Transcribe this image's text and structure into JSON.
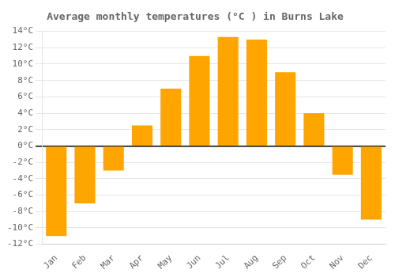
{
  "chart_data": {
    "type": "bar",
    "title": "Average monthly temperatures (°C ) in Burns Lake",
    "categories": [
      "Jan",
      "Feb",
      "Mar",
      "Apr",
      "May",
      "Jun",
      "Jul",
      "Aug",
      "Sep",
      "Oct",
      "Nov",
      "Dec"
    ],
    "values": [
      -11,
      -7,
      -3,
      2.5,
      7,
      11,
      13.3,
      13,
      9,
      4,
      -3.5,
      -9
    ],
    "color": "#FFA500",
    "ylim": [
      -12,
      14
    ],
    "yticks": [
      {
        "value": -12,
        "label": "-12°C"
      },
      {
        "value": -10,
        "label": "-10°C"
      },
      {
        "value": -8,
        "label": "-8°C"
      },
      {
        "value": -6,
        "label": "-6°C"
      },
      {
        "value": -4,
        "label": "-4°C"
      },
      {
        "value": -2,
        "label": "-2°C"
      },
      {
        "value": 0,
        "label": "0°C"
      },
      {
        "value": 2,
        "label": "2°C"
      },
      {
        "value": 4,
        "label": "4°C"
      },
      {
        "value": 6,
        "label": "6°C"
      },
      {
        "value": 8,
        "label": "8°C"
      },
      {
        "value": 10,
        "label": "10°C"
      },
      {
        "value": 12,
        "label": "12°C"
      },
      {
        "value": 14,
        "label": "14°C"
      }
    ],
    "grid": true
  }
}
